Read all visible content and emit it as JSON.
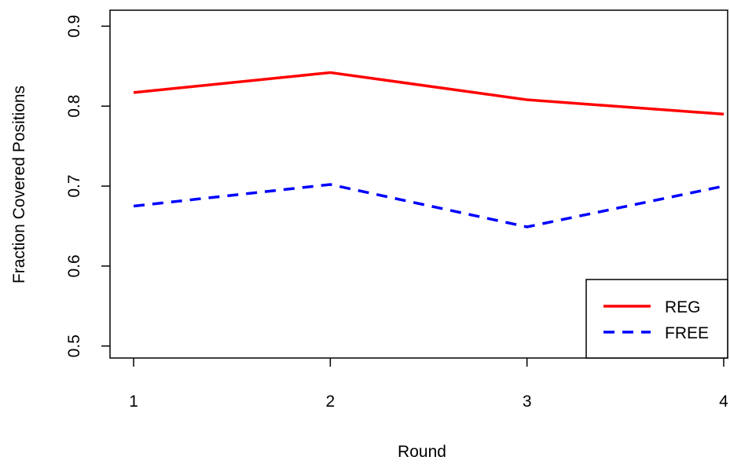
{
  "chart_data": {
    "type": "line",
    "xlabel": "Round",
    "ylabel": "Fraction Covered Positions",
    "x": [
      1,
      2,
      3,
      4
    ],
    "xticks": [
      "1",
      "2",
      "3",
      "4"
    ],
    "yticks": [
      "0.5",
      "0.6",
      "0.7",
      "0.8",
      "0.9"
    ],
    "xlim": [
      0.88,
      4.02
    ],
    "ylim": [
      0.485,
      0.92
    ],
    "grid": false,
    "legend_position": "bottom-right",
    "series": [
      {
        "name": "REG",
        "values": [
          0.817,
          0.842,
          0.808,
          0.79
        ],
        "color": "#ff0000",
        "style": "solid"
      },
      {
        "name": "FREE",
        "values": [
          0.675,
          0.702,
          0.649,
          0.7
        ],
        "color": "#0000ff",
        "style": "dashed"
      }
    ]
  }
}
